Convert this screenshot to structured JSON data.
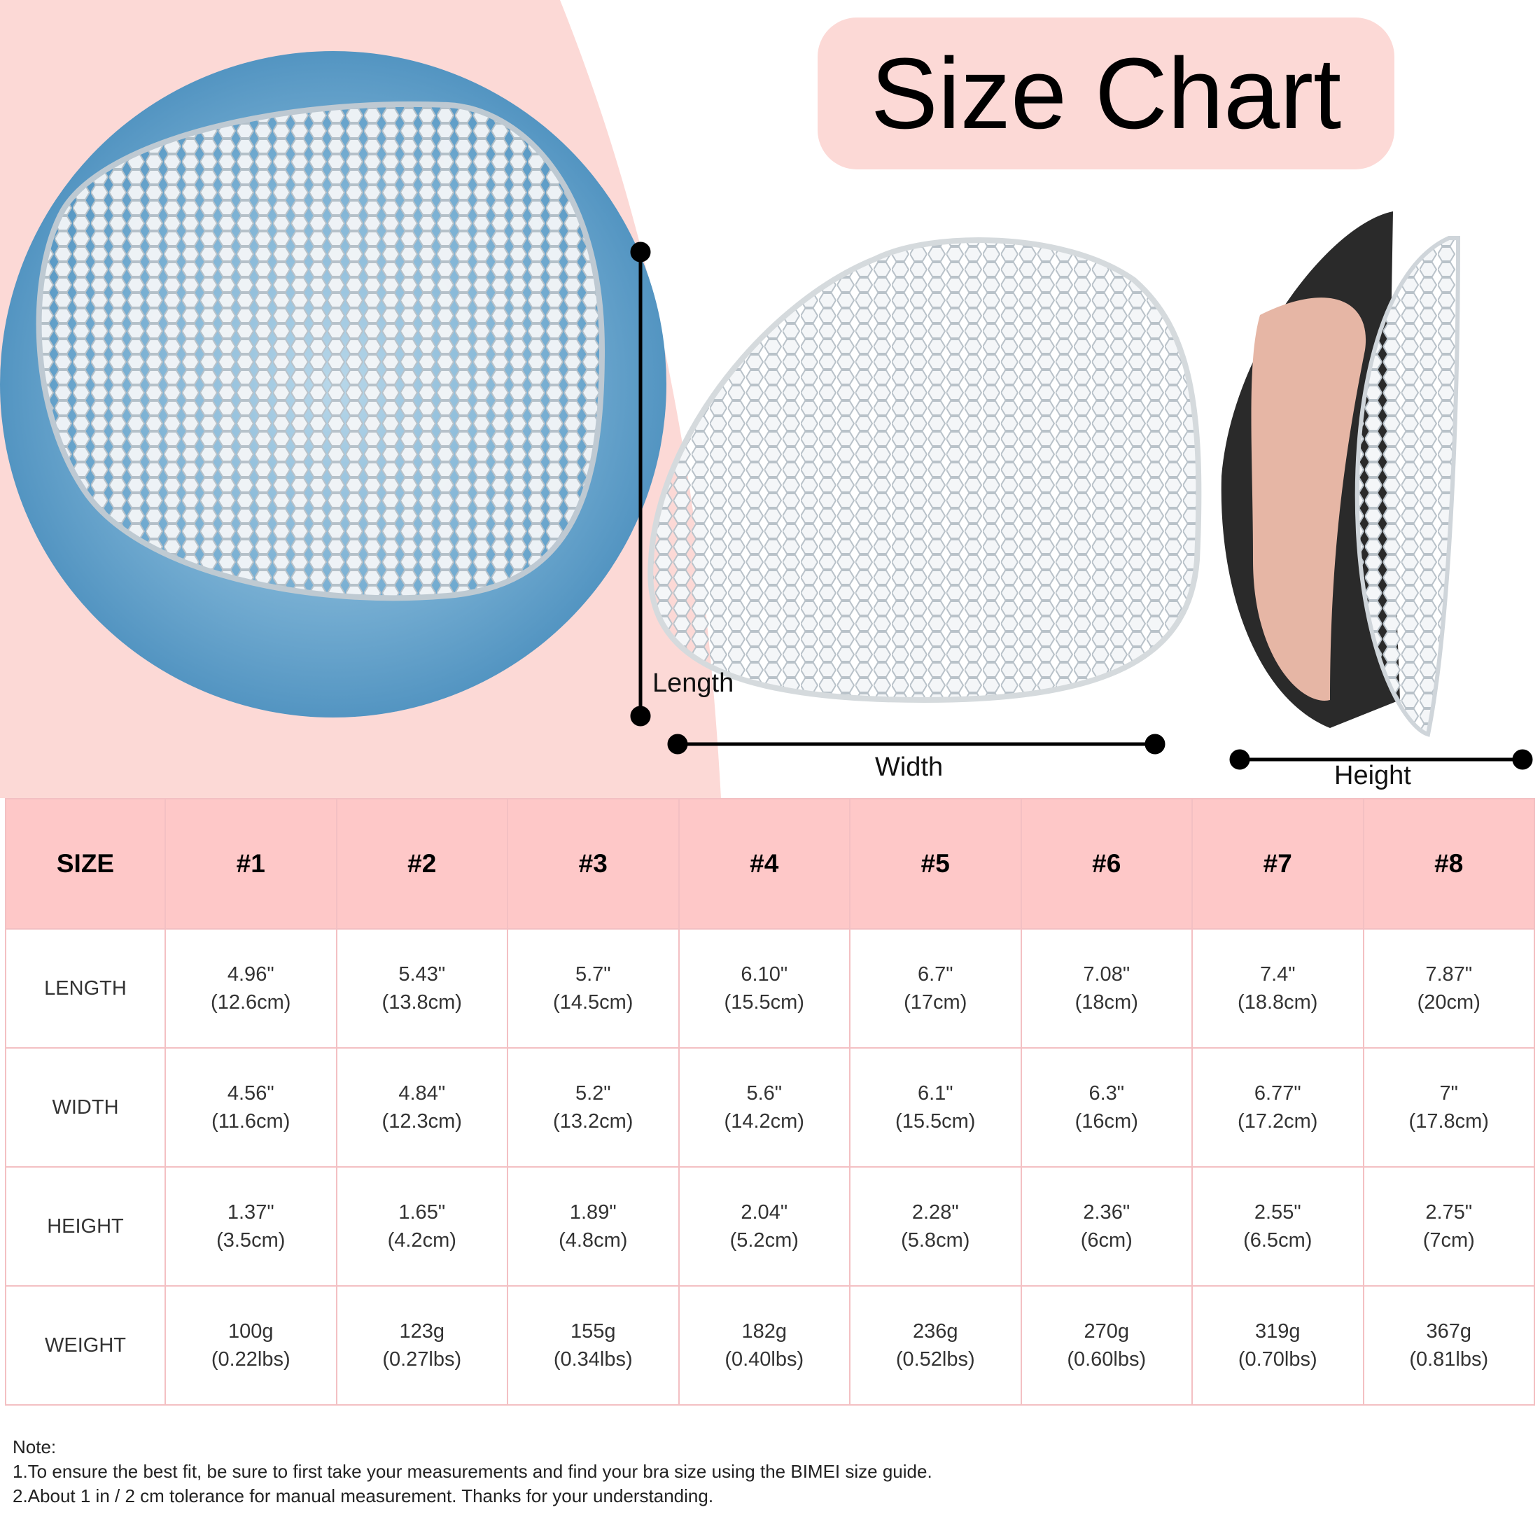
{
  "title": "Size Chart",
  "dimension_labels": {
    "length": "Length",
    "width": "Width",
    "height": "Height"
  },
  "table": {
    "header": [
      "SIZE",
      "#1",
      "#2",
      "#3",
      "#4",
      "#5",
      "#6",
      "#7",
      "#8"
    ],
    "rows": [
      {
        "label": "LENGTH",
        "cells": [
          [
            "4.96\"",
            "(12.6cm)"
          ],
          [
            "5.43\"",
            "(13.8cm)"
          ],
          [
            "5.7\"",
            "(14.5cm)"
          ],
          [
            "6.10\"",
            "(15.5cm)"
          ],
          [
            "6.7\"",
            "(17cm)"
          ],
          [
            "7.08\"",
            "(18cm)"
          ],
          [
            "7.4\"",
            "(18.8cm)"
          ],
          [
            "7.87\"",
            "(20cm)"
          ]
        ]
      },
      {
        "label": "WIDTH",
        "cells": [
          [
            "4.56\"",
            "(11.6cm)"
          ],
          [
            "4.84\"",
            "(12.3cm)"
          ],
          [
            "5.2\"",
            "(13.2cm)"
          ],
          [
            "5.6\"",
            "(14.2cm)"
          ],
          [
            "6.1\"",
            "(15.5cm)"
          ],
          [
            "6.3\"",
            "(16cm)"
          ],
          [
            "6.77\"",
            "(17.2cm)"
          ],
          [
            "7\"",
            "(17.8cm)"
          ]
        ]
      },
      {
        "label": "HEIGHT",
        "cells": [
          [
            "1.37\"",
            "(3.5cm)"
          ],
          [
            "1.65\"",
            "(4.2cm)"
          ],
          [
            "1.89\"",
            "(4.8cm)"
          ],
          [
            "2.04\"",
            "(5.2cm)"
          ],
          [
            "2.28\"",
            "(5.8cm)"
          ],
          [
            "2.36\"",
            "(6cm)"
          ],
          [
            "2.55\"",
            "(6.5cm)"
          ],
          [
            "2.75\"",
            "(7cm)"
          ]
        ]
      },
      {
        "label": "WEIGHT",
        "cells": [
          [
            "100g",
            "(0.22lbs)"
          ],
          [
            "123g",
            "(0.27lbs)"
          ],
          [
            "155g",
            "(0.34lbs)"
          ],
          [
            "182g",
            "(0.40lbs)"
          ],
          [
            "236g",
            "(0.52lbs)"
          ],
          [
            "270g",
            "(0.60lbs)"
          ],
          [
            "319g",
            "(0.70lbs)"
          ],
          [
            "367g",
            "(0.81lbs)"
          ]
        ]
      }
    ]
  },
  "notes": [
    "Note:",
    "1.To ensure the best fit, be sure to first take your measurements and find your bra size using the BIMEI size guide.",
    "2.About 1 in / 2 cm tolerance for manual measurement. Thanks for your understanding."
  ]
}
